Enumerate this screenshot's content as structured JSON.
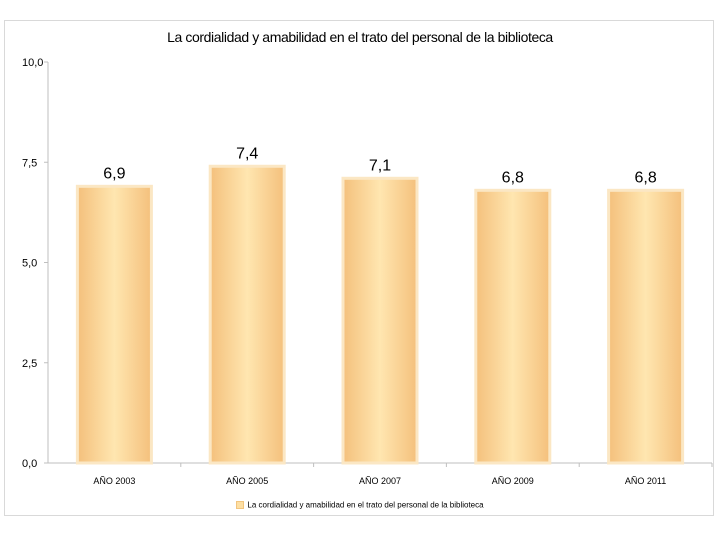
{
  "chart_data": {
    "type": "bar",
    "title": "La cordialidad y amabilidad en el trato del personal de la biblioteca",
    "categories": [
      "AÑO 2003",
      "AÑO 2005",
      "AÑO 2007",
      "AÑO 2009",
      "AÑO 2011"
    ],
    "values": [
      6.9,
      7.4,
      7.1,
      6.8,
      6.8
    ],
    "value_labels": [
      "6,9",
      "7,4",
      "7,1",
      "6,8",
      "6,8"
    ],
    "series": [
      {
        "name": "La cordialidad y amabilidad en el trato del personal de la biblioteca",
        "values": [
          6.9,
          7.4,
          7.1,
          6.8,
          6.8
        ]
      }
    ],
    "yticks": [
      0,
      2.5,
      5,
      7.5,
      10
    ],
    "ytick_labels": [
      "0,0",
      "2,5",
      "5,0",
      "7,5",
      "10,0"
    ],
    "ylim": [
      0,
      10
    ],
    "xlabel": "",
    "ylabel": "",
    "grid": false,
    "legend_position": "bottom",
    "colors": {
      "bar_center": "#ffe6b0",
      "bar_edge": "#f4c07c",
      "bar_outline": "#fbe7c4",
      "axis": "#bfbfbf"
    }
  }
}
